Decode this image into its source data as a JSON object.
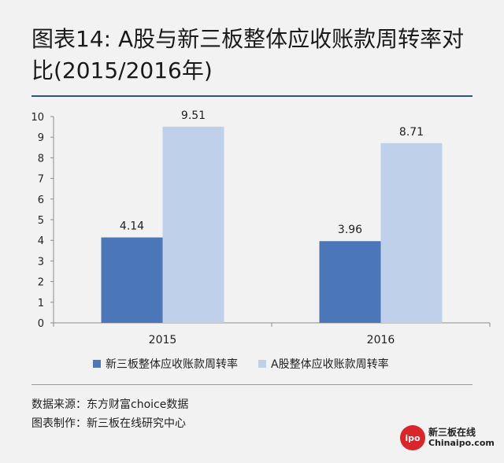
{
  "title": "图表14: A股与新三板整体应收账款周转率对比(2015/2016年)",
  "footer": {
    "source_line": "数据来源：东方财富choice数据",
    "maker_line": "图表制作：新三板在线研究中心"
  },
  "logo": {
    "badge_text": "ipo",
    "name_cn": "新三板在线",
    "name_en": "Chinaipo.com"
  },
  "colors": {
    "series_1": "#4b76b8",
    "series_2": "#bfd0ea",
    "accent_rule": "#2d4f8a"
  },
  "chart_data": {
    "type": "bar",
    "title": "图表14: A股与新三板整体应收账款周转率对比(2015/2016年)",
    "xlabel": "",
    "ylabel": "",
    "categories": [
      "2015",
      "2016"
    ],
    "series": [
      {
        "name": "新三板整体应收账款周转率",
        "values": [
          4.14,
          3.96
        ],
        "labels": [
          "4.14",
          "3.96"
        ]
      },
      {
        "name": "A股整体应收账款周转率",
        "values": [
          9.51,
          8.71
        ],
        "labels": [
          "9.51",
          "8.71"
        ]
      }
    ],
    "ylim": [
      0,
      10
    ],
    "yticks": [
      "0",
      "1",
      "2",
      "3",
      "4",
      "5",
      "6",
      "7",
      "8",
      "9",
      "10"
    ],
    "grid": false,
    "legend_position": "bottom"
  }
}
